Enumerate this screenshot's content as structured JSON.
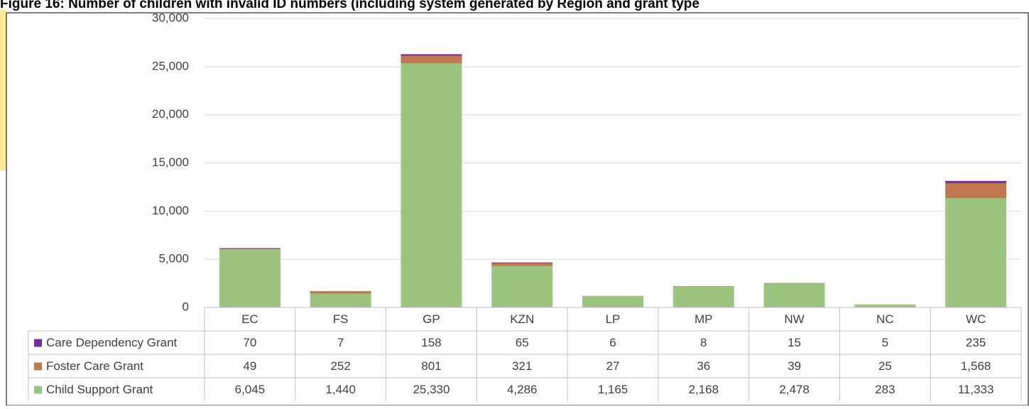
{
  "chart_data": {
    "type": "bar",
    "stacked": true,
    "title": "Figure 16: Number of children with invalid ID numbers (including system generated by Region and grant type",
    "categories": [
      "EC",
      "FS",
      "GP",
      "KZN",
      "LP",
      "MP",
      "NW",
      "NC",
      "WC"
    ],
    "series": [
      {
        "name": "Care Dependency Grant",
        "color": "#7030a0",
        "values": [
          70,
          7,
          158,
          65,
          6,
          8,
          15,
          5,
          235
        ]
      },
      {
        "name": "Foster Care Grant",
        "color": "#c0784f",
        "values": [
          49,
          252,
          801,
          321,
          27,
          36,
          39,
          25,
          1568
        ],
        "value_labels": [
          "49",
          "252",
          "801",
          "321",
          "27",
          "36",
          "39",
          "25",
          "1,568"
        ]
      },
      {
        "name": "Child Support Grant",
        "color": "#9bc47e",
        "values": [
          6045,
          1440,
          25330,
          4286,
          1165,
          2168,
          2478,
          283,
          11333
        ],
        "value_labels": [
          "6,045",
          "1,440",
          "25,330",
          "4,286",
          "1,165",
          "2,168",
          "2,478",
          "283",
          "11,333"
        ]
      }
    ],
    "ylim": [
      0,
      30000
    ],
    "yticks": [
      0,
      {
        "value": 5000,
        "label": "5,000"
      },
      {
        "value": 10000,
        "label": "10,000"
      },
      {
        "value": 15000,
        "label": "15,000"
      },
      {
        "value": 20000,
        "label": "20,000"
      },
      {
        "value": 25000,
        "label": "25,000"
      },
      {
        "value": 30000,
        "label": "30,000"
      }
    ],
    "grid": true
  }
}
